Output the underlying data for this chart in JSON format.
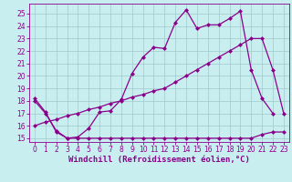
{
  "xlabel": "Windchill (Refroidissement éolien,°C)",
  "bg_color": "#c8eef0",
  "line_color": "#8b008b",
  "grid_color": "#a0c8cc",
  "xlim": [
    -0.5,
    23.5
  ],
  "ylim": [
    14.7,
    25.8
  ],
  "yticks": [
    15,
    16,
    17,
    18,
    19,
    20,
    21,
    22,
    23,
    24,
    25
  ],
  "xticks": [
    0,
    1,
    2,
    3,
    4,
    5,
    6,
    7,
    8,
    9,
    10,
    11,
    12,
    13,
    14,
    15,
    16,
    17,
    18,
    19,
    20,
    21,
    22,
    23
  ],
  "line1_x": [
    0,
    1,
    2,
    3,
    4,
    5,
    6,
    7,
    8,
    9,
    10,
    11,
    12,
    13,
    14,
    15,
    16,
    17,
    18,
    19,
    20,
    21,
    22
  ],
  "line1_y": [
    18.2,
    17.1,
    15.5,
    15.0,
    15.1,
    15.8,
    17.1,
    17.2,
    18.1,
    20.2,
    21.5,
    22.3,
    22.2,
    24.3,
    25.3,
    23.8,
    24.1,
    24.1,
    24.6,
    25.2,
    20.5,
    18.2,
    17.0
  ],
  "line2_x": [
    0,
    1,
    2,
    3,
    4,
    5,
    6,
    7,
    8,
    9,
    10,
    11,
    12,
    13,
    14,
    15,
    16,
    17,
    18,
    19,
    20,
    21,
    22,
    23
  ],
  "line2_y": [
    16.0,
    16.3,
    16.5,
    16.8,
    17.0,
    17.3,
    17.5,
    17.8,
    18.0,
    18.3,
    18.5,
    18.8,
    19.0,
    19.5,
    20.0,
    20.5,
    21.0,
    21.5,
    22.0,
    22.5,
    23.0,
    23.0,
    20.5,
    17.0
  ],
  "line3_x": [
    0,
    1,
    2,
    3,
    4,
    5,
    6,
    7,
    8,
    9,
    10,
    11,
    12,
    13,
    14,
    15,
    16,
    17,
    18,
    19,
    20,
    21,
    22,
    23
  ],
  "line3_y": [
    18.0,
    17.0,
    15.6,
    15.0,
    15.0,
    15.0,
    15.0,
    15.0,
    15.0,
    15.0,
    15.0,
    15.0,
    15.0,
    15.0,
    15.0,
    15.0,
    15.0,
    15.0,
    15.0,
    15.0,
    15.0,
    15.3,
    15.5,
    15.5
  ],
  "marker_size": 2.5,
  "line_width": 0.9,
  "font_color": "#8b008b",
  "tick_fontsize": 5.5,
  "xlabel_fontsize": 6.5,
  "figsize": [
    3.2,
    2.0
  ],
  "dpi": 100
}
